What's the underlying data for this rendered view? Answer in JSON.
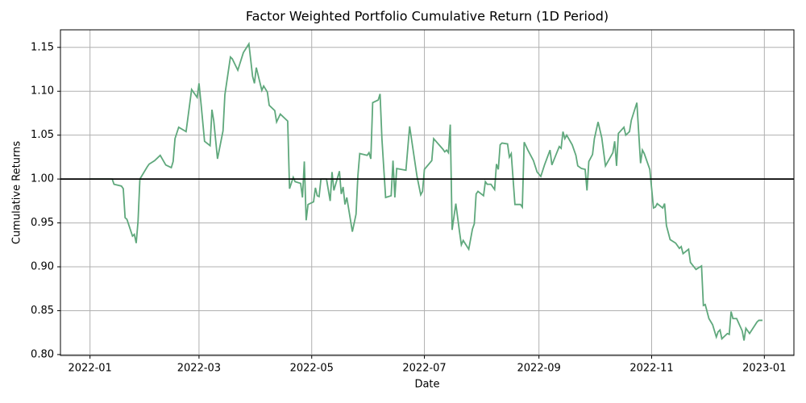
{
  "chart_data": {
    "type": "line",
    "title": "Factor Weighted Portfolio Cumulative Return (1D Period)",
    "xlabel": "Date",
    "ylabel": "Cumulative Returns",
    "color": "#5fa87c",
    "grid": true,
    "hline": 1,
    "xlim": [
      -16,
      381
    ],
    "xticks": [
      {
        "value": 0,
        "label": "2022-01"
      },
      {
        "value": 59,
        "label": "2022-03"
      },
      {
        "value": 120,
        "label": "2022-05"
      },
      {
        "value": 181,
        "label": "2022-07"
      },
      {
        "value": 243,
        "label": "2022-09"
      },
      {
        "value": 304,
        "label": "2022-11"
      },
      {
        "value": 365,
        "label": "2023-01"
      }
    ],
    "ylim": [
      0.799,
      1.17
    ],
    "yticks": [
      {
        "value": 0.8,
        "label": "0.80"
      },
      {
        "value": 0.85,
        "label": "0.85"
      },
      {
        "value": 0.9,
        "label": "0.90"
      },
      {
        "value": 0.95,
        "label": "0.95"
      },
      {
        "value": 1.0,
        "label": "1.00"
      },
      {
        "value": 1.05,
        "label": "1.05"
      },
      {
        "value": 1.1,
        "label": "1.10"
      },
      {
        "value": 1.15,
        "label": "1.15"
      }
    ],
    "x": [
      0,
      12,
      13,
      17,
      18,
      19,
      20,
      23,
      24,
      25,
      26,
      27,
      31,
      32,
      35,
      38,
      41,
      44,
      45,
      46,
      48,
      52,
      55,
      58,
      59,
      60,
      62,
      65,
      66,
      67,
      69,
      72,
      73,
      76,
      77,
      80,
      83,
      86,
      88,
      89,
      90,
      93,
      94,
      96,
      97,
      100,
      101,
      103,
      107,
      108,
      110,
      111,
      114,
      115,
      116,
      117,
      118,
      121,
      122,
      123,
      124,
      125,
      128,
      130,
      131,
      132,
      135,
      136,
      137,
      138,
      139,
      142,
      144,
      145,
      146,
      150,
      151,
      152,
      153,
      156,
      157,
      158,
      160,
      163,
      164,
      165,
      166,
      171,
      173,
      177,
      179,
      180,
      181,
      185,
      186,
      191,
      192,
      193,
      194,
      195,
      196,
      198,
      200,
      201,
      202,
      205,
      207,
      208,
      209,
      210,
      213,
      214,
      215,
      217,
      219,
      220,
      221,
      222,
      223,
      226,
      227,
      228,
      230,
      233,
      234,
      235,
      237,
      240,
      242,
      244,
      246,
      249,
      250,
      254,
      255,
      256,
      257,
      258,
      261,
      263,
      264,
      266,
      268,
      269,
      270,
      272,
      273,
      275,
      277,
      279,
      283,
      284,
      285,
      286,
      289,
      290,
      292,
      293,
      296,
      298,
      299,
      300,
      303,
      305,
      306,
      307,
      310,
      311,
      312,
      314,
      317,
      319,
      320,
      321,
      324,
      325,
      328,
      331,
      332,
      333,
      335,
      337,
      339,
      340,
      341,
      342,
      345,
      346,
      347,
      348,
      350,
      353,
      354,
      355,
      357,
      361,
      362,
      364
    ],
    "values": [
      1.0,
      1.0,
      0.994,
      0.992,
      0.989,
      0.956,
      0.954,
      0.935,
      0.937,
      0.927,
      0.952,
      1.0,
      1.014,
      1.017,
      1.021,
      1.027,
      1.016,
      1.013,
      1.02,
      1.046,
      1.059,
      1.054,
      1.102,
      1.093,
      1.109,
      1.088,
      1.043,
      1.038,
      1.079,
      1.066,
      1.023,
      1.055,
      1.096,
      1.139,
      1.137,
      1.124,
      1.144,
      1.154,
      1.117,
      1.109,
      1.127,
      1.101,
      1.106,
      1.099,
      1.084,
      1.078,
      1.065,
      1.074,
      1.066,
      0.989,
      1.002,
      0.997,
      0.995,
      0.979,
      1.02,
      0.953,
      0.971,
      0.974,
      0.99,
      0.981,
      0.98,
      1.0,
      1.0,
      0.975,
      1.008,
      0.987,
      1.009,
      0.983,
      0.991,
      0.971,
      0.979,
      0.94,
      0.96,
      1.004,
      1.029,
      1.027,
      1.03,
      1.023,
      1.087,
      1.09,
      1.097,
      1.046,
      0.979,
      0.981,
      1.021,
      0.979,
      1.012,
      1.01,
      1.06,
      1.003,
      0.982,
      0.986,
      1.011,
      1.021,
      1.046,
      1.034,
      1.031,
      1.033,
      1.03,
      1.062,
      0.942,
      0.972,
      0.94,
      0.925,
      0.93,
      0.92,
      0.943,
      0.949,
      0.983,
      0.986,
      0.981,
      0.997,
      0.994,
      0.994,
      0.988,
      1.017,
      1.011,
      1.039,
      1.041,
      1.04,
      1.025,
      1.029,
      0.971,
      0.971,
      0.968,
      1.042,
      1.033,
      1.021,
      1.008,
      1.003,
      1.016,
      1.033,
      1.016,
      1.037,
      1.035,
      1.054,
      1.046,
      1.05,
      1.039,
      1.027,
      1.015,
      1.012,
      1.011,
      0.987,
      1.02,
      1.028,
      1.046,
      1.065,
      1.047,
      1.015,
      1.03,
      1.043,
      1.015,
      1.052,
      1.059,
      1.05,
      1.054,
      1.067,
      1.087,
      1.018,
      1.033,
      1.029,
      1.011,
      0.967,
      0.968,
      0.972,
      0.967,
      0.972,
      0.947,
      0.931,
      0.927,
      0.921,
      0.923,
      0.915,
      0.92,
      0.905,
      0.897,
      0.901,
      0.856,
      0.857,
      0.841,
      0.834,
      0.82,
      0.826,
      0.828,
      0.818,
      0.824,
      0.823,
      0.849,
      0.841,
      0.841,
      0.827,
      0.816,
      0.83,
      0.824,
      0.837,
      0.839,
      0.839
    ]
  }
}
